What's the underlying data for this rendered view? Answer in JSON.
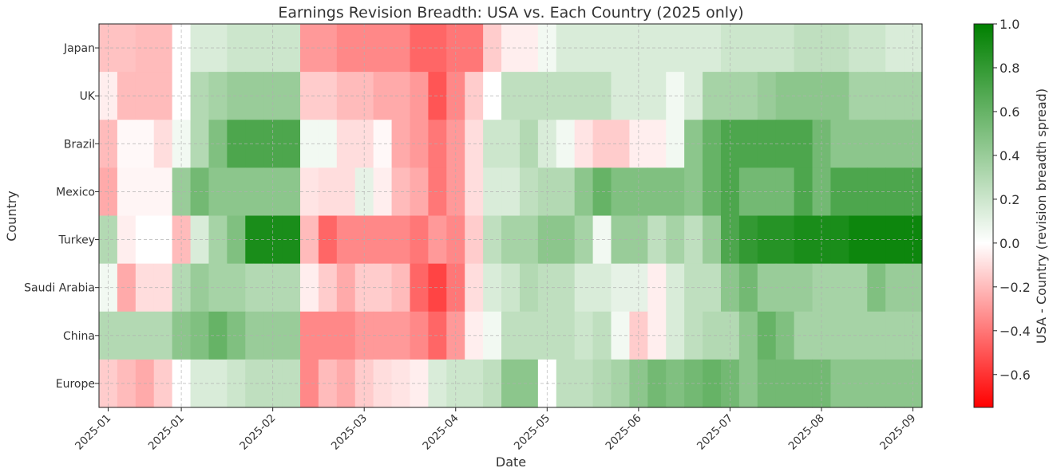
{
  "chart_data": {
    "type": "heatmap",
    "title": "Earnings Revision Breadth: USA vs. Each Country (2025 only)",
    "xlabel": "Date",
    "ylabel": "Country",
    "colorbar_label": "USA - Country (revision breadth spread)",
    "colorbar_ticks": [
      "1.0",
      "0.8",
      "0.6",
      "0.4",
      "0.2",
      "0.0",
      "−0.2",
      "−0.4",
      "−0.6"
    ],
    "colorbar_range": [
      -0.75,
      1.0
    ],
    "colormap": {
      "negative": "#ff0000",
      "zero": "#ffffff",
      "positive": "#008000"
    },
    "grid": true,
    "x_ticks": [
      {
        "label": "2025-01",
        "week": 0
      },
      {
        "label": "2025-01",
        "week": 4
      },
      {
        "label": "2025-02",
        "week": 9
      },
      {
        "label": "2025-03",
        "week": 14
      },
      {
        "label": "2025-04",
        "week": 19
      },
      {
        "label": "2025-05",
        "week": 24
      },
      {
        "label": "2025-06",
        "week": 29
      },
      {
        "label": "2025-07",
        "week": 34
      },
      {
        "label": "2025-08",
        "week": 39
      },
      {
        "label": "2025-09",
        "week": 44
      }
    ],
    "rows": [
      "Japan",
      "UK",
      "Brazil",
      "Mexico",
      "Turkey",
      "Saudi Arabia",
      "China",
      "Europe"
    ],
    "values": [
      [
        -0.18,
        -0.18,
        -0.2,
        -0.2,
        0.0,
        0.15,
        0.15,
        0.2,
        0.2,
        0.2,
        0.2,
        -0.3,
        -0.3,
        -0.35,
        -0.35,
        -0.35,
        -0.35,
        -0.45,
        -0.45,
        -0.4,
        -0.4,
        -0.15,
        -0.05,
        -0.05,
        0.05,
        0.15,
        0.15,
        0.15,
        0.15,
        0.15,
        0.15,
        0.15,
        0.15,
        0.15,
        0.2,
        0.2,
        0.2,
        0.2,
        0.25,
        0.25,
        0.25,
        0.2,
        0.2,
        0.15,
        0.15
      ],
      [
        -0.05,
        -0.2,
        -0.2,
        -0.2,
        0.0,
        0.3,
        0.35,
        0.4,
        0.4,
        0.4,
        0.4,
        -0.15,
        -0.15,
        -0.2,
        -0.2,
        -0.25,
        -0.25,
        -0.3,
        -0.5,
        -0.35,
        -0.15,
        0.0,
        0.25,
        0.25,
        0.25,
        0.25,
        0.25,
        0.25,
        0.15,
        0.15,
        0.15,
        0.05,
        0.15,
        0.35,
        0.35,
        0.35,
        0.4,
        0.45,
        0.45,
        0.45,
        0.45,
        0.35,
        0.35,
        0.35,
        0.35
      ],
      [
        -0.2,
        -0.02,
        -0.02,
        -0.1,
        0.05,
        0.3,
        0.5,
        0.7,
        0.7,
        0.7,
        0.7,
        0.05,
        0.05,
        -0.1,
        -0.1,
        -0.02,
        -0.25,
        -0.3,
        -0.4,
        -0.3,
        -0.1,
        0.2,
        0.2,
        0.3,
        0.15,
        0.05,
        -0.08,
        -0.15,
        -0.15,
        -0.05,
        -0.05,
        0.05,
        0.45,
        0.6,
        0.7,
        0.7,
        0.7,
        0.7,
        0.7,
        0.55,
        0.45,
        0.45,
        0.45,
        0.45,
        0.45
      ],
      [
        -0.25,
        -0.03,
        -0.03,
        -0.03,
        0.4,
        0.55,
        0.45,
        0.45,
        0.45,
        0.45,
        0.45,
        -0.08,
        -0.1,
        -0.1,
        0.1,
        -0.05,
        -0.2,
        -0.25,
        -0.4,
        -0.3,
        -0.1,
        0.15,
        0.15,
        0.25,
        0.3,
        0.3,
        0.45,
        0.6,
        0.5,
        0.5,
        0.5,
        0.5,
        0.45,
        0.6,
        0.7,
        0.55,
        0.55,
        0.55,
        0.7,
        0.55,
        0.7,
        0.7,
        0.7,
        0.7,
        0.7
      ],
      [
        0.3,
        -0.05,
        0.0,
        0.0,
        -0.2,
        0.15,
        0.35,
        0.5,
        0.9,
        0.9,
        0.9,
        -0.2,
        -0.45,
        -0.35,
        -0.35,
        -0.35,
        -0.35,
        -0.4,
        -0.3,
        -0.35,
        -0.15,
        0.25,
        0.35,
        0.35,
        0.45,
        0.45,
        0.35,
        0.05,
        0.4,
        0.4,
        0.25,
        0.35,
        0.25,
        0.4,
        0.7,
        0.8,
        0.85,
        0.85,
        0.9,
        0.9,
        0.9,
        0.95,
        0.95,
        0.95,
        0.95
      ],
      [
        0.05,
        -0.25,
        -0.1,
        -0.1,
        0.3,
        0.4,
        0.35,
        0.35,
        0.3,
        0.3,
        0.3,
        -0.05,
        -0.15,
        -0.25,
        -0.15,
        -0.15,
        -0.2,
        -0.45,
        -0.55,
        -0.4,
        -0.1,
        0.15,
        0.2,
        0.3,
        0.25,
        0.25,
        0.15,
        0.15,
        0.1,
        0.1,
        -0.05,
        0.15,
        0.25,
        0.25,
        0.45,
        0.55,
        0.4,
        0.4,
        0.4,
        0.35,
        0.35,
        0.35,
        0.5,
        0.4,
        0.4
      ],
      [
        0.3,
        0.3,
        0.3,
        0.3,
        0.45,
        0.5,
        0.6,
        0.5,
        0.4,
        0.4,
        0.4,
        -0.35,
        -0.35,
        -0.35,
        -0.3,
        -0.3,
        -0.3,
        -0.35,
        -0.45,
        -0.3,
        -0.05,
        0.05,
        0.25,
        0.25,
        0.25,
        0.25,
        0.2,
        0.25,
        0.05,
        -0.15,
        -0.05,
        0.15,
        0.25,
        0.3,
        0.3,
        0.45,
        0.6,
        0.5,
        0.35,
        0.35,
        0.35,
        0.35,
        0.35,
        0.35,
        0.35
      ],
      [
        -0.15,
        -0.2,
        -0.25,
        -0.15,
        0.0,
        0.15,
        0.15,
        0.2,
        0.25,
        0.25,
        0.25,
        -0.35,
        -0.2,
        -0.25,
        -0.15,
        -0.1,
        -0.08,
        -0.05,
        0.15,
        0.2,
        0.2,
        0.25,
        0.45,
        0.45,
        0.0,
        0.25,
        0.25,
        0.3,
        0.35,
        0.45,
        0.55,
        0.5,
        0.55,
        0.6,
        0.55,
        0.45,
        0.55,
        0.55,
        0.55,
        0.55,
        0.45,
        0.45,
        0.45,
        0.45,
        0.45
      ]
    ]
  }
}
